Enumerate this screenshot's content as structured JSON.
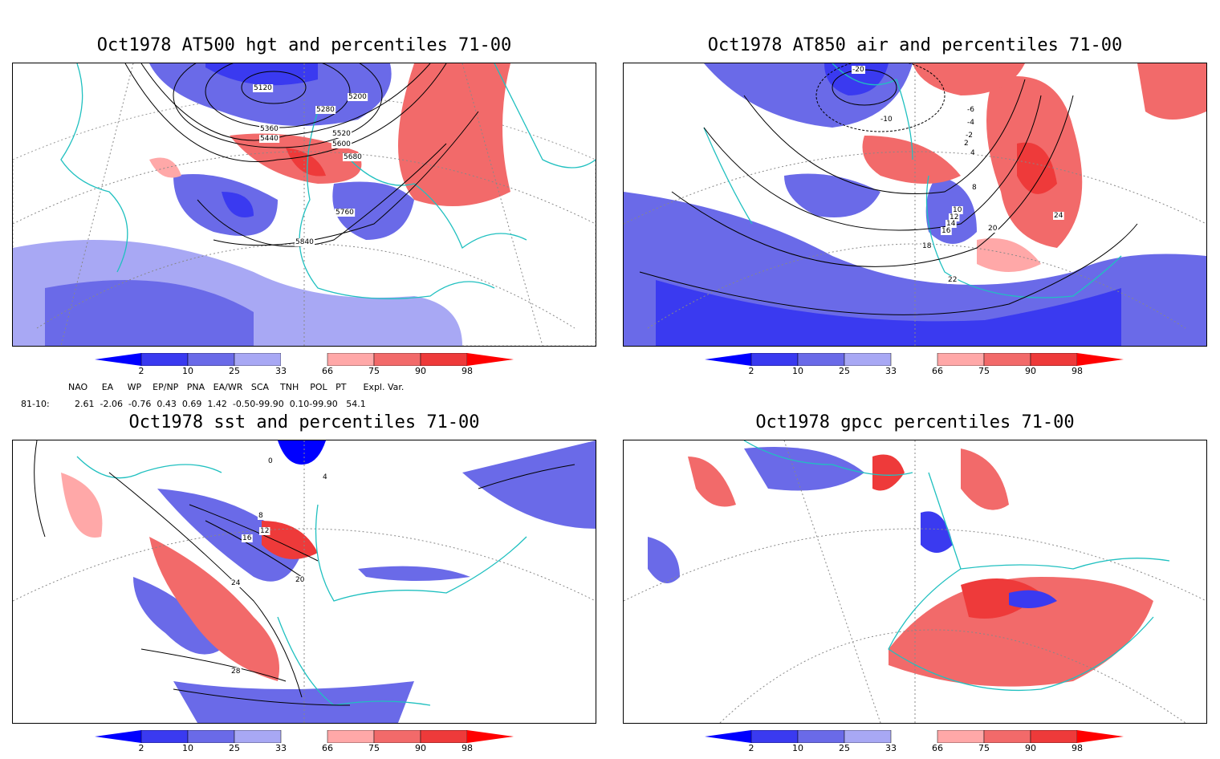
{
  "panels": [
    {
      "title": "Oct1978 AT500 hgt and percentiles 71-00"
    },
    {
      "title": "Oct1978 AT850 air and percentiles 71-00"
    },
    {
      "title": "Oct1978 sst and percentiles 71-00"
    },
    {
      "title": "Oct1978 gpcc percentiles 71-00"
    }
  ],
  "colorbar": {
    "labels": [
      "2",
      "10",
      "25",
      "33",
      "66",
      "75",
      "90",
      "98"
    ],
    "colors": {
      "below2": "#0000ff",
      "b2_10": "#3a3af0",
      "b10_25": "#6a6ae8",
      "b25_33": "#a8a8f4",
      "neutral": "#ffffff",
      "a66_75": "#ffa8a8",
      "a75_90": "#f26a6a",
      "a90_98": "#ee3a3a",
      "above98": "#ff0000"
    }
  },
  "teleconnections": {
    "header": "  NAO     EA     WP    EP/NP   PNA   EA/WR   SCA    TNH    POL   PT      Expl. Var.",
    "row_label": "81-10:",
    "values": "  2.61  -2.06  -0.76  0.43  0.69  1.42  -0.50-99.90  0.10-99.90   54.1"
  },
  "contour_labels": {
    "hgt": [
      "5120",
      "5200",
      "5280",
      "5360",
      "5440",
      "5520",
      "5600",
      "5680",
      "5760",
      "5840"
    ],
    "air": [
      "-20",
      "-10",
      "-6",
      "-4",
      "-2",
      "2",
      "4",
      "8",
      "10",
      "12",
      "14",
      "16",
      "18",
      "20",
      "22",
      "24"
    ],
    "sst": [
      "0",
      "4",
      "8",
      "12",
      "16",
      "20",
      "24",
      "28"
    ]
  },
  "colors": {
    "coast": "#20c0c0",
    "grid": "#888888"
  }
}
